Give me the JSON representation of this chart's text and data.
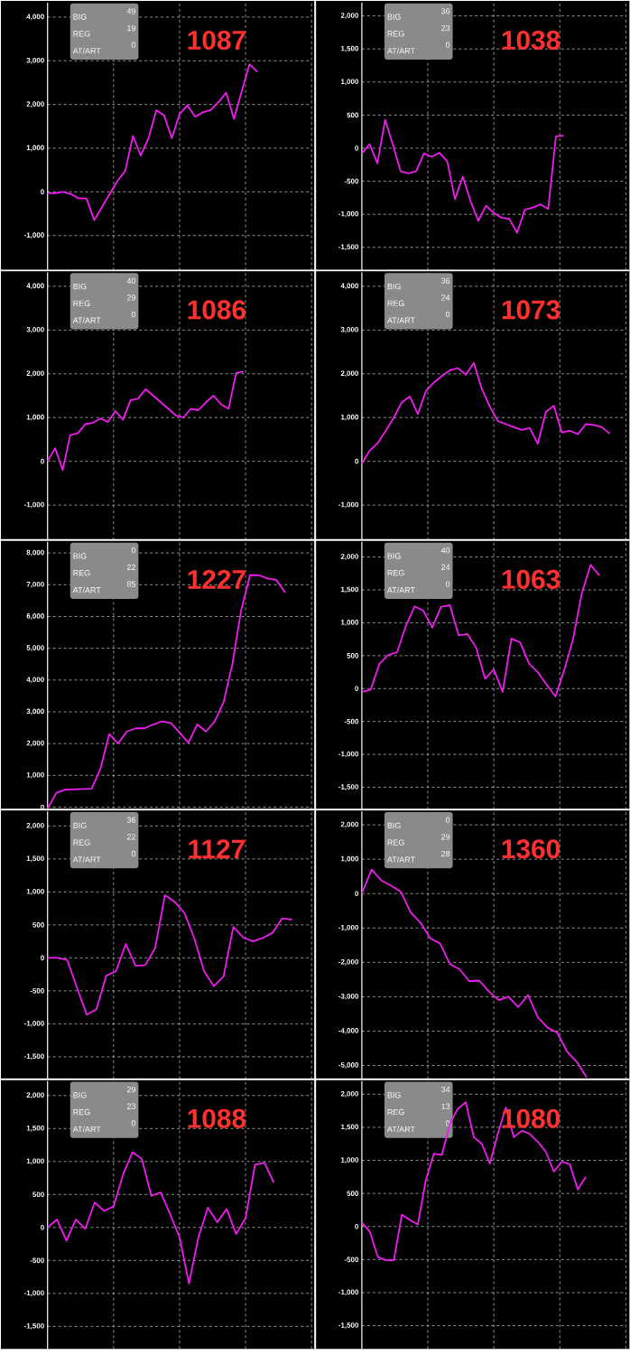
{
  "chart_data": [
    {
      "type": "line",
      "title": "1087",
      "annotations": [
        "BIG",
        "49",
        "REG",
        "19",
        "AT/ART",
        "0"
      ],
      "color": "#f01cf0",
      "grid": true,
      "ylim": [
        -1800,
        4330
      ],
      "yticks": [
        {
          "value": -1000,
          "label": "-1,000"
        },
        {
          "value": 0,
          "label": "0"
        },
        {
          "value": 1000,
          "label": "1,000"
        },
        {
          "value": 2000,
          "label": "2,000"
        },
        {
          "value": 3000,
          "label": "3,000"
        },
        {
          "value": 4000,
          "label": "4,000"
        }
      ],
      "categories": [
        null,
        null,
        null,
        null,
        null,
        null,
        null,
        null,
        null,
        null,
        null,
        null,
        null,
        null,
        null,
        null,
        null,
        null,
        null,
        null,
        null,
        null,
        null,
        null,
        null,
        null,
        null,
        null,
        null,
        null,
        null,
        null,
        null,
        null,
        null
      ],
      "values": [
        -30,
        -30,
        0,
        -50,
        -150,
        -150,
        -650,
        -350,
        -50,
        250,
        480,
        1280,
        830,
        1230,
        1870,
        1750,
        1230,
        1780,
        1980,
        1720,
        1820,
        1870,
        2050,
        2270,
        1670,
        2300,
        2920,
        2750,
        null,
        null,
        null,
        null,
        null,
        null,
        null
      ]
    },
    {
      "type": "line",
      "title": "1038",
      "annotations": [
        "BIG",
        "36",
        "REG",
        "23",
        "AT/ART",
        "0"
      ],
      "color": "#f01cf0",
      "grid": true,
      "ylim": [
        -1850,
        2200
      ],
      "yticks": [
        {
          "value": -1500,
          "label": "-1,500"
        },
        {
          "value": -1000,
          "label": "-1,000"
        },
        {
          "value": -500,
          "label": "-500"
        },
        {
          "value": 0,
          "label": "0"
        },
        {
          "value": 500,
          "label": "500"
        },
        {
          "value": 1000,
          "label": "1,000"
        },
        {
          "value": 1500,
          "label": "1,500"
        },
        {
          "value": 2000,
          "label": "2,000"
        }
      ],
      "categories": [
        null,
        null,
        null,
        null,
        null,
        null,
        null,
        null,
        null,
        null,
        null,
        null,
        null,
        null,
        null,
        null,
        null,
        null,
        null,
        null,
        null,
        null,
        null,
        null,
        null,
        null,
        null,
        null,
        null,
        null,
        null,
        null,
        null,
        null,
        null
      ],
      "values": [
        -80,
        60,
        -230,
        430,
        50,
        -350,
        -380,
        -350,
        -80,
        -130,
        -70,
        -200,
        -770,
        -430,
        -800,
        -1100,
        -870,
        -980,
        -1050,
        -1070,
        -1280,
        -930,
        -900,
        -850,
        -920,
        180,
        190,
        null,
        null,
        null,
        null,
        null,
        null,
        null,
        null
      ]
    },
    {
      "type": "line",
      "title": "1086",
      "annotations": [
        "BIG",
        "40",
        "REG",
        "29",
        "AT/ART",
        "0"
      ],
      "color": "#f01cf0",
      "grid": true,
      "ylim": [
        -1800,
        4320
      ],
      "yticks": [
        {
          "value": -1000,
          "label": "-1,000"
        },
        {
          "value": 0,
          "label": "0"
        },
        {
          "value": 1000,
          "label": "1,000"
        },
        {
          "value": 2000,
          "label": "2,000"
        },
        {
          "value": 3000,
          "label": "3,000"
        },
        {
          "value": 4000,
          "label": "4,000"
        }
      ],
      "categories": [
        null,
        null,
        null,
        null,
        null,
        null,
        null,
        null,
        null,
        null,
        null,
        null,
        null,
        null,
        null,
        null,
        null,
        null,
        null,
        null,
        null,
        null,
        null,
        null,
        null,
        null,
        null,
        null,
        null,
        null,
        null,
        null,
        null,
        null,
        null,
        null
      ],
      "values": [
        0,
        300,
        -200,
        600,
        640,
        850,
        880,
        980,
        900,
        1150,
        950,
        1400,
        1430,
        1650,
        1500,
        1350,
        1200,
        1050,
        1000,
        1200,
        1170,
        1350,
        1500,
        1300,
        1200,
        2020,
        2050,
        null,
        null,
        null,
        null,
        null,
        null,
        null,
        null,
        null
      ]
    },
    {
      "type": "line",
      "title": "1073",
      "annotations": [
        "BIG",
        "36",
        "REG",
        "24",
        "AT/ART",
        "0"
      ],
      "color": "#f01cf0",
      "grid": true,
      "ylim": [
        -1800,
        4320
      ],
      "yticks": [
        {
          "value": -1000,
          "label": "-1,000"
        },
        {
          "value": 0,
          "label": "0"
        },
        {
          "value": 1000,
          "label": "1,000"
        },
        {
          "value": 2000,
          "label": "2,000"
        },
        {
          "value": 3000,
          "label": "3,000"
        },
        {
          "value": 4000,
          "label": "4,000"
        }
      ],
      "categories": [
        null,
        null,
        null,
        null,
        null,
        null,
        null,
        null,
        null,
        null,
        null,
        null,
        null,
        null,
        null,
        null,
        null,
        null,
        null,
        null,
        null,
        null,
        null,
        null,
        null,
        null,
        null,
        null,
        null,
        null,
        null,
        null,
        null,
        null
      ],
      "values": [
        -50,
        250,
        420,
        700,
        1000,
        1350,
        1480,
        1080,
        1600,
        1800,
        1950,
        2080,
        2130,
        1980,
        2250,
        1650,
        1250,
        920,
        850,
        780,
        720,
        760,
        400,
        1130,
        1270,
        660,
        700,
        620,
        850,
        830,
        780,
        630,
        null,
        null
      ]
    },
    {
      "type": "line",
      "title": "1227",
      "annotations": [
        "BIG",
        "0",
        "REG",
        "22",
        "AT/ART",
        "85"
      ],
      "color": "#f01cf0",
      "grid": true,
      "ylim": [
        -80,
        8350
      ],
      "yticks": [
        {
          "value": 0,
          "label": "0"
        },
        {
          "value": 1000,
          "label": "1,000"
        },
        {
          "value": 2000,
          "label": "2,000"
        },
        {
          "value": 3000,
          "label": "3,000"
        },
        {
          "value": 4000,
          "label": "4,000"
        },
        {
          "value": 5000,
          "label": "5,000"
        },
        {
          "value": 6000,
          "label": "6,000"
        },
        {
          "value": 7000,
          "label": "7,000"
        },
        {
          "value": 8000,
          "label": "8,000"
        }
      ],
      "categories": [
        null,
        null,
        null,
        null,
        null,
        null,
        null,
        null,
        null,
        null,
        null,
        null,
        null,
        null,
        null,
        null,
        null,
        null,
        null,
        null,
        null,
        null,
        null,
        null,
        null,
        null,
        null,
        null,
        null,
        null,
        null
      ],
      "values": [
        -50,
        450,
        550,
        560,
        570,
        580,
        1200,
        2300,
        2000,
        2380,
        2480,
        2480,
        2600,
        2700,
        2650,
        2350,
        2020,
        2600,
        2380,
        2700,
        3300,
        4500,
        6200,
        7300,
        7300,
        7200,
        7150,
        6750,
        null,
        null,
        null
      ]
    },
    {
      "type": "line",
      "title": "1063",
      "annotations": [
        "BIG",
        "40",
        "REG",
        "24",
        "AT/ART",
        "0"
      ],
      "color": "#f01cf0",
      "grid": true,
      "ylim": [
        -1840,
        2230
      ],
      "yticks": [
        {
          "value": -1500,
          "label": "-1,500"
        },
        {
          "value": -1000,
          "label": "-1,000"
        },
        {
          "value": -500,
          "label": "-500"
        },
        {
          "value": 0,
          "label": "0"
        },
        {
          "value": 500,
          "label": "500"
        },
        {
          "value": 1000,
          "label": "1,000"
        },
        {
          "value": 1500,
          "label": "1,500"
        },
        {
          "value": 2000,
          "label": "2,000"
        }
      ],
      "categories": [
        null,
        null,
        null,
        null,
        null,
        null,
        null,
        null,
        null,
        null,
        null,
        null,
        null,
        null,
        null,
        null,
        null,
        null,
        null,
        null,
        null,
        null,
        null,
        null,
        null,
        null,
        null,
        null,
        null,
        null,
        null
      ],
      "values": [
        -50,
        -20,
        380,
        510,
        550,
        950,
        1250,
        1180,
        930,
        1240,
        1270,
        810,
        830,
        620,
        150,
        290,
        -50,
        760,
        700,
        380,
        250,
        60,
        -120,
        280,
        750,
        1450,
        1880,
        1720,
        null,
        null,
        null
      ]
    },
    {
      "type": "line",
      "title": "1127",
      "annotations": [
        "BIG",
        "36",
        "REG",
        "22",
        "AT/ART",
        "0"
      ],
      "color": "#f01cf0",
      "grid": true,
      "ylim": [
        -1840,
        2220
      ],
      "yticks": [
        {
          "value": -1500,
          "label": "-1,500"
        },
        {
          "value": -1000,
          "label": "-1,000"
        },
        {
          "value": -500,
          "label": "-500"
        },
        {
          "value": 0,
          "label": "0"
        },
        {
          "value": 500,
          "label": "500"
        },
        {
          "value": 1000,
          "label": "1,000"
        },
        {
          "value": 1500,
          "label": "1,500"
        },
        {
          "value": 2000,
          "label": "2,000"
        }
      ],
      "categories": [
        null,
        null,
        null,
        null,
        null,
        null,
        null,
        null,
        null,
        null,
        null,
        null,
        null,
        null,
        null,
        null,
        null,
        null,
        null,
        null,
        null,
        null,
        null,
        null,
        null,
        null,
        null,
        null
      ],
      "values": [
        0,
        0,
        -30,
        -450,
        -860,
        -780,
        -270,
        -200,
        210,
        -120,
        -110,
        150,
        950,
        850,
        680,
        300,
        -200,
        -430,
        -280,
        470,
        310,
        250,
        300,
        380,
        600,
        580,
        null,
        null
      ]
    },
    {
      "type": "line",
      "title": "1360",
      "annotations": [
        "BIG",
        "0",
        "REG",
        "29",
        "AT/ART",
        "28"
      ],
      "color": "#f01cf0",
      "grid": true,
      "ylim": [
        -5400,
        2390
      ],
      "yticks": [
        {
          "value": -5000,
          "label": "-5,000"
        },
        {
          "value": -4000,
          "label": "-4,000"
        },
        {
          "value": -3000,
          "label": "-3,000"
        },
        {
          "value": -2000,
          "label": "-2,000"
        },
        {
          "value": -1000,
          "label": "-1,000"
        },
        {
          "value": 0,
          "label": "0"
        },
        {
          "value": 1000,
          "label": "1,000"
        },
        {
          "value": 2000,
          "label": "2,000"
        }
      ],
      "categories": [
        null,
        null,
        null,
        null,
        null,
        null,
        null,
        null,
        null,
        null,
        null,
        null,
        null,
        null,
        null,
        null,
        null,
        null,
        null,
        null,
        null,
        null,
        null,
        null,
        null,
        null,
        null,
        null
      ],
      "values": [
        0,
        700,
        380,
        230,
        50,
        -550,
        -850,
        -1300,
        -1450,
        -2050,
        -2200,
        -2550,
        -2530,
        -2850,
        -3100,
        -3000,
        -3300,
        -2950,
        -3600,
        -3900,
        -4050,
        -4600,
        -4900,
        -5350,
        null,
        null,
        null,
        null
      ]
    },
    {
      "type": "line",
      "title": "1088",
      "annotations": [
        "BIG",
        "29",
        "REG",
        "23",
        "AT/ART",
        "0"
      ],
      "color": "#f01cf0",
      "grid": true,
      "ylim": [
        -1840,
        2220
      ],
      "yticks": [
        {
          "value": -1500,
          "label": "-1,500"
        },
        {
          "value": -1000,
          "label": "-1,000"
        },
        {
          "value": -500,
          "label": "-500"
        },
        {
          "value": 0,
          "label": "0"
        },
        {
          "value": 500,
          "label": "500"
        },
        {
          "value": 1000,
          "label": "1,000"
        },
        {
          "value": 1500,
          "label": "1,500"
        },
        {
          "value": 2000,
          "label": "2,000"
        }
      ],
      "categories": [
        null,
        null,
        null,
        null,
        null,
        null,
        null,
        null,
        null,
        null,
        null,
        null,
        null,
        null,
        null,
        null,
        null,
        null,
        null,
        null,
        null,
        null,
        null,
        null,
        null,
        null,
        null,
        null,
        null
      ],
      "values": [
        0,
        120,
        -200,
        120,
        -20,
        380,
        250,
        320,
        800,
        1140,
        1040,
        480,
        530,
        200,
        -150,
        -850,
        -150,
        300,
        80,
        280,
        -100,
        140,
        950,
        980,
        680,
        null,
        null,
        null,
        null
      ]
    },
    {
      "type": "line",
      "title": "1080",
      "annotations": [
        "BIG",
        "34",
        "REG",
        "13",
        "AT/ART",
        "0"
      ],
      "color": "#f01cf0",
      "grid": true,
      "ylim": [
        -1850,
        2200
      ],
      "yticks": [
        {
          "value": -1500,
          "label": "-1,500"
        },
        {
          "value": -1000,
          "label": "-1,000"
        },
        {
          "value": -500,
          "label": "-500"
        },
        {
          "value": 0,
          "label": "0"
        },
        {
          "value": 500,
          "label": "500"
        },
        {
          "value": 1000,
          "label": "1,000"
        },
        {
          "value": 1500,
          "label": "1,500"
        },
        {
          "value": 2000,
          "label": "2,000"
        }
      ],
      "categories": [
        null,
        null,
        null,
        null,
        null,
        null,
        null,
        null,
        null,
        null,
        null,
        null,
        null,
        null,
        null,
        null,
        null,
        null,
        null,
        null,
        null,
        null,
        null,
        null,
        null,
        null,
        null,
        null,
        null,
        null,
        null,
        null,
        null,
        null
      ],
      "values": [
        60,
        -80,
        -460,
        -510,
        -510,
        180,
        100,
        30,
        700,
        1100,
        1080,
        1550,
        1780,
        1880,
        1350,
        1250,
        950,
        1400,
        1800,
        1350,
        1450,
        1400,
        1280,
        1130,
        830,
        980,
        940,
        560,
        750,
        null,
        null,
        null,
        null,
        null
      ]
    }
  ]
}
